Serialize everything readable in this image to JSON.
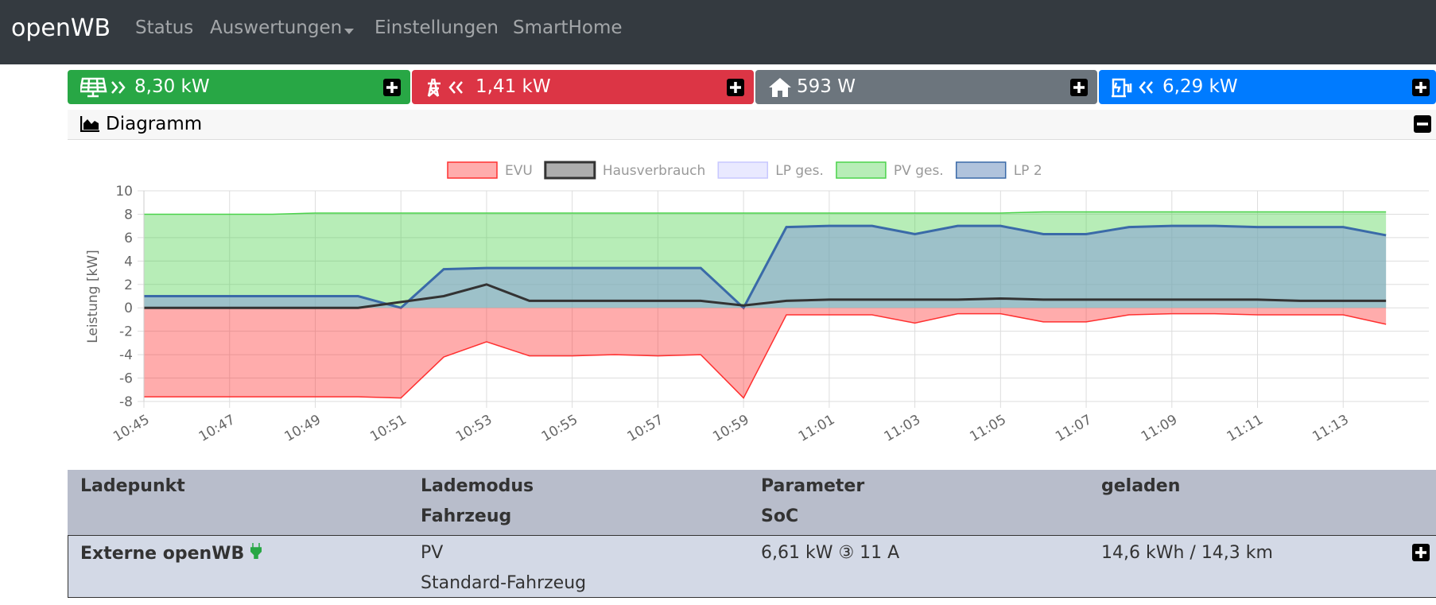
{
  "navbar": {
    "brand": "openWB",
    "items": [
      "Status",
      "Auswertungen",
      "Einstellungen",
      "SmartHome"
    ]
  },
  "tiles": [
    {
      "value": "8,30 kW"
    },
    {
      "value": "1,41 kW"
    },
    {
      "value": "593 W"
    },
    {
      "value": "6,29 kW"
    }
  ],
  "diagram": {
    "title": "Diagramm"
  },
  "chart_data": {
    "type": "area",
    "ylabel": "Leistung [kW]",
    "x": [
      "10:45",
      "10:46",
      "10:47",
      "10:48",
      "10:49",
      "10:50",
      "10:51",
      "10:52",
      "10:53",
      "10:54",
      "10:55",
      "10:56",
      "10:57",
      "10:58",
      "10:59",
      "11:00",
      "11:01",
      "11:02",
      "11:03",
      "11:04",
      "11:05",
      "11:06",
      "11:07",
      "11:08",
      "11:09",
      "11:10",
      "11:11",
      "11:12",
      "11:13",
      "11:14"
    ],
    "series": [
      {
        "name": "EVU",
        "color": "#ff3030",
        "values": [
          -7.6,
          -7.6,
          -7.6,
          -7.6,
          -7.6,
          -7.6,
          -7.7,
          -4.2,
          -2.9,
          -4.1,
          -4.1,
          -4.0,
          -4.1,
          -4.0,
          -7.7,
          -0.6,
          -0.6,
          -0.6,
          -1.3,
          -0.5,
          -0.5,
          -1.2,
          -1.2,
          -0.6,
          -0.5,
          -0.5,
          -0.6,
          -0.6,
          -0.6,
          -1.4
        ]
      },
      {
        "name": "Hausverbrauch",
        "color": "#333333",
        "values": [
          0,
          0,
          0,
          0,
          0,
          0,
          0.5,
          1.0,
          2.0,
          0.6,
          0.6,
          0.6,
          0.6,
          0.6,
          0.2,
          0.6,
          0.7,
          0.7,
          0.7,
          0.7,
          0.8,
          0.7,
          0.7,
          0.7,
          0.7,
          0.7,
          0.7,
          0.6,
          0.6,
          0.6
        ]
      },
      {
        "name": "LP ges.",
        "color": "#c8c8ff",
        "values": [
          1.0,
          1.0,
          1.0,
          1.0,
          1.0,
          1.0,
          0,
          3.3,
          3.4,
          3.4,
          3.4,
          3.4,
          3.4,
          3.4,
          0,
          6.9,
          7.0,
          7.0,
          6.3,
          7.0,
          7.0,
          6.3,
          6.3,
          6.9,
          7.0,
          7.0,
          6.9,
          6.9,
          6.9,
          6.2
        ]
      },
      {
        "name": "PV ges.",
        "color": "#4cd34c",
        "values": [
          8.0,
          8.0,
          8.0,
          8.0,
          8.1,
          8.1,
          8.1,
          8.1,
          8.1,
          8.1,
          8.1,
          8.1,
          8.1,
          8.1,
          8.1,
          8.1,
          8.1,
          8.1,
          8.1,
          8.1,
          8.1,
          8.2,
          8.2,
          8.2,
          8.2,
          8.2,
          8.2,
          8.2,
          8.2,
          8.2
        ]
      },
      {
        "name": "LP 2",
        "color": "#3a6aa8",
        "values": [
          1.0,
          1.0,
          1.0,
          1.0,
          1.0,
          1.0,
          0,
          3.3,
          3.4,
          3.4,
          3.4,
          3.4,
          3.4,
          3.4,
          0,
          6.9,
          7.0,
          7.0,
          6.3,
          7.0,
          7.0,
          6.3,
          6.3,
          6.9,
          7.0,
          7.0,
          6.9,
          6.9,
          6.9,
          6.2
        ]
      }
    ],
    "xlim": [
      "10:45",
      "11:15"
    ],
    "xticks": [
      "10:45",
      "10:47",
      "10:49",
      "10:51",
      "10:53",
      "10:55",
      "10:57",
      "10:59",
      "11:01",
      "11:03",
      "11:05",
      "11:07",
      "11:09",
      "11:11",
      "11:13"
    ],
    "ylim": [
      -8,
      10
    ],
    "yticks": [
      -8,
      -6,
      -4,
      -2,
      0,
      2,
      4,
      6,
      8,
      10
    ],
    "grid": true
  },
  "table": {
    "headers": [
      [
        "Ladepunkt"
      ],
      [
        "Lademodus",
        "Fahrzeug"
      ],
      [
        "Parameter",
        "SoC"
      ],
      [
        "geladen"
      ]
    ],
    "rows": [
      [
        [
          "Externe openWB"
        ],
        [
          "PV",
          "Standard-Fahrzeug"
        ],
        [
          "6,61 kW ③ 11 A"
        ],
        [
          "14,6 kWh / 14,3 km"
        ]
      ]
    ]
  }
}
